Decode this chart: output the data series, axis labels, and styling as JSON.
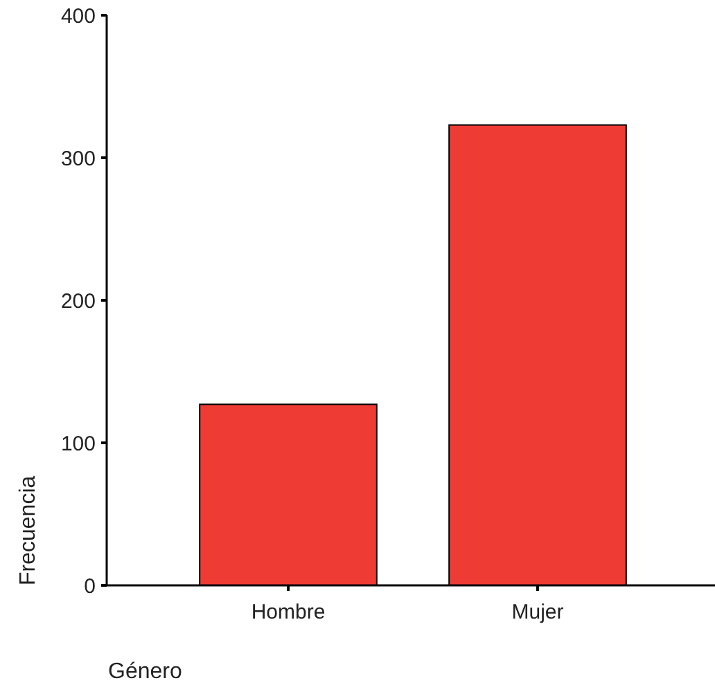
{
  "chart_data": {
    "type": "bar",
    "xlabel": "Género",
    "ylabel": "Frecuencia",
    "categories": [
      "Hombre",
      "Mujer"
    ],
    "values": [
      127,
      323
    ],
    "color": "#ee3b33",
    "ylim": [
      0,
      400
    ],
    "yticks": [
      0,
      100,
      200,
      300,
      400
    ],
    "grid": false
  }
}
